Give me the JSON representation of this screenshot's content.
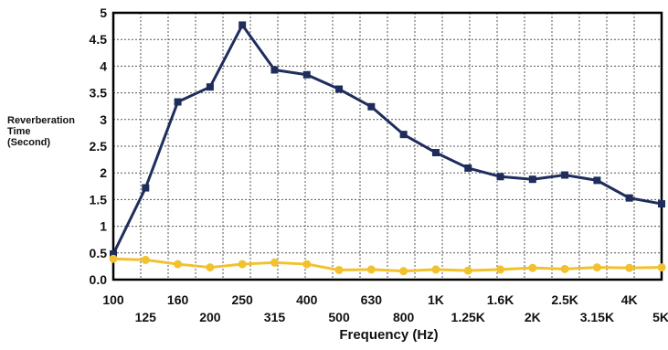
{
  "chart_data": {
    "type": "line",
    "xlabel": "Frequency (Hz)",
    "ylabel_lines": [
      "Reverberation",
      "Time",
      "(Second)"
    ],
    "categories": [
      "100",
      "125",
      "160",
      "200",
      "250",
      "315",
      "400",
      "500",
      "630",
      "800",
      "1K",
      "1.25K",
      "1.6K",
      "2K",
      "2.5K",
      "3.15K",
      "4K",
      "5K"
    ],
    "yticks": [
      "5",
      "4.5",
      "4",
      "3.5",
      "3",
      "2.5",
      "2",
      "1.5",
      "1",
      "0.5",
      "0.0"
    ],
    "ylim": [
      0,
      5
    ],
    "grid": true,
    "series": [
      {
        "color": "#1f2d5c",
        "marker": "square",
        "values": [
          0.48,
          1.72,
          3.33,
          3.61,
          4.77,
          3.93,
          3.84,
          3.57,
          3.24,
          2.72,
          2.38,
          2.09,
          1.93,
          1.88,
          1.96,
          1.86,
          1.53,
          1.42
        ]
      },
      {
        "color": "#f2c12e",
        "marker": "circle",
        "values": [
          0.39,
          0.37,
          0.29,
          0.23,
          0.29,
          0.32,
          0.29,
          0.18,
          0.19,
          0.16,
          0.19,
          0.17,
          0.19,
          0.22,
          0.2,
          0.23,
          0.22,
          0.23
        ]
      }
    ]
  }
}
